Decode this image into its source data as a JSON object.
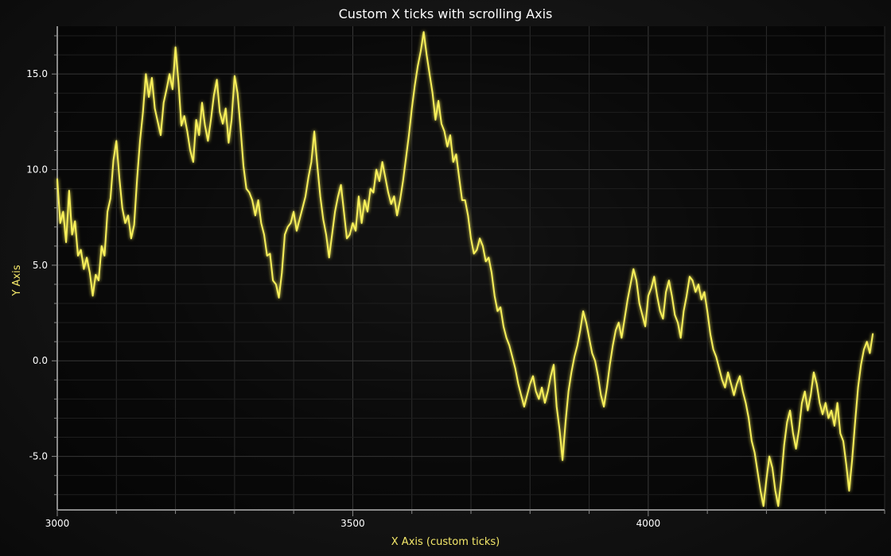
{
  "chart_data": {
    "type": "line",
    "title": "Custom X ticks with scrolling Axis",
    "xlabel": "X Axis (custom ticks)",
    "ylabel": "Y Axis",
    "xlim": [
      3000,
      4400
    ],
    "ylim": [
      -7.8,
      17.5
    ],
    "x_ticks": [
      3000,
      3500,
      4000
    ],
    "x_tick_labels": [
      "3000",
      "3500",
      "4000"
    ],
    "y_ticks": [
      -5,
      0,
      5,
      10,
      15
    ],
    "y_tick_labels": [
      "-5.0",
      "0.0",
      "5.0",
      "10.0",
      "15.0"
    ],
    "grid": true,
    "legend": "none",
    "colors": {
      "series": "#f8f05a",
      "grid": "#2c2c2c",
      "axis": "#8a8a8a"
    },
    "series": [
      {
        "points": [
          [
            3000,
            9.5
          ],
          [
            3005,
            7.2
          ],
          [
            3010,
            7.8
          ],
          [
            3015,
            6.2
          ],
          [
            3020,
            8.9
          ],
          [
            3025,
            6.6
          ],
          [
            3030,
            7.3
          ],
          [
            3035,
            5.5
          ],
          [
            3040,
            5.8
          ],
          [
            3045,
            4.8
          ],
          [
            3050,
            5.4
          ],
          [
            3055,
            4.6
          ],
          [
            3060,
            3.4
          ],
          [
            3065,
            4.5
          ],
          [
            3070,
            4.2
          ],
          [
            3075,
            6.0
          ],
          [
            3080,
            5.5
          ],
          [
            3085,
            7.8
          ],
          [
            3090,
            8.5
          ],
          [
            3095,
            10.5
          ],
          [
            3100,
            11.5
          ],
          [
            3105,
            9.6
          ],
          [
            3110,
            8.0
          ],
          [
            3115,
            7.2
          ],
          [
            3120,
            7.6
          ],
          [
            3125,
            6.4
          ],
          [
            3130,
            7.1
          ],
          [
            3135,
            9.5
          ],
          [
            3140,
            11.5
          ],
          [
            3145,
            13.0
          ],
          [
            3150,
            15.0
          ],
          [
            3155,
            13.8
          ],
          [
            3160,
            14.8
          ],
          [
            3165,
            13.2
          ],
          [
            3170,
            12.5
          ],
          [
            3175,
            11.8
          ],
          [
            3180,
            13.5
          ],
          [
            3185,
            14.2
          ],
          [
            3190,
            15.0
          ],
          [
            3195,
            14.2
          ],
          [
            3200,
            16.4
          ],
          [
            3205,
            14.6
          ],
          [
            3210,
            12.3
          ],
          [
            3215,
            12.8
          ],
          [
            3220,
            12.0
          ],
          [
            3225,
            11.0
          ],
          [
            3230,
            10.4
          ],
          [
            3235,
            12.6
          ],
          [
            3240,
            11.8
          ],
          [
            3245,
            13.5
          ],
          [
            3250,
            12.3
          ],
          [
            3255,
            11.5
          ],
          [
            3260,
            12.6
          ],
          [
            3265,
            13.9
          ],
          [
            3270,
            14.7
          ],
          [
            3275,
            13.0
          ],
          [
            3280,
            12.4
          ],
          [
            3285,
            13.2
          ],
          [
            3290,
            11.4
          ],
          [
            3295,
            12.6
          ],
          [
            3300,
            14.9
          ],
          [
            3305,
            14.0
          ],
          [
            3310,
            12.2
          ],
          [
            3315,
            10.2
          ],
          [
            3320,
            9.0
          ],
          [
            3325,
            8.8
          ],
          [
            3330,
            8.4
          ],
          [
            3335,
            7.6
          ],
          [
            3340,
            8.4
          ],
          [
            3345,
            7.2
          ],
          [
            3350,
            6.6
          ],
          [
            3355,
            5.5
          ],
          [
            3360,
            5.6
          ],
          [
            3365,
            4.2
          ],
          [
            3370,
            4.0
          ],
          [
            3375,
            3.3
          ],
          [
            3380,
            4.6
          ],
          [
            3385,
            6.6
          ],
          [
            3390,
            7.0
          ],
          [
            3395,
            7.2
          ],
          [
            3400,
            7.8
          ],
          [
            3405,
            6.8
          ],
          [
            3410,
            7.4
          ],
          [
            3415,
            8.0
          ],
          [
            3420,
            8.6
          ],
          [
            3425,
            9.6
          ],
          [
            3430,
            10.4
          ],
          [
            3435,
            12.0
          ],
          [
            3440,
            10.2
          ],
          [
            3445,
            8.6
          ],
          [
            3450,
            7.4
          ],
          [
            3455,
            6.6
          ],
          [
            3460,
            5.4
          ],
          [
            3465,
            6.6
          ],
          [
            3470,
            7.8
          ],
          [
            3475,
            8.6
          ],
          [
            3480,
            9.2
          ],
          [
            3485,
            7.8
          ],
          [
            3490,
            6.4
          ],
          [
            3495,
            6.6
          ],
          [
            3500,
            7.2
          ],
          [
            3505,
            6.8
          ],
          [
            3510,
            8.6
          ],
          [
            3515,
            7.2
          ],
          [
            3520,
            8.4
          ],
          [
            3525,
            7.8
          ],
          [
            3530,
            9.0
          ],
          [
            3535,
            8.8
          ],
          [
            3540,
            10.0
          ],
          [
            3545,
            9.4
          ],
          [
            3550,
            10.4
          ],
          [
            3555,
            9.6
          ],
          [
            3560,
            8.8
          ],
          [
            3565,
            8.2
          ],
          [
            3570,
            8.6
          ],
          [
            3575,
            7.6
          ],
          [
            3580,
            8.4
          ],
          [
            3585,
            9.4
          ],
          [
            3590,
            10.6
          ],
          [
            3595,
            11.8
          ],
          [
            3600,
            13.2
          ],
          [
            3605,
            14.4
          ],
          [
            3610,
            15.4
          ],
          [
            3615,
            16.2
          ],
          [
            3620,
            17.2
          ],
          [
            3625,
            16.0
          ],
          [
            3630,
            15.0
          ],
          [
            3635,
            14.0
          ],
          [
            3640,
            12.6
          ],
          [
            3645,
            13.6
          ],
          [
            3650,
            12.4
          ],
          [
            3655,
            12.0
          ],
          [
            3660,
            11.2
          ],
          [
            3665,
            11.8
          ],
          [
            3670,
            10.4
          ],
          [
            3675,
            10.8
          ],
          [
            3680,
            9.6
          ],
          [
            3685,
            8.4
          ],
          [
            3690,
            8.4
          ],
          [
            3695,
            7.6
          ],
          [
            3700,
            6.4
          ],
          [
            3705,
            5.6
          ],
          [
            3710,
            5.8
          ],
          [
            3715,
            6.4
          ],
          [
            3720,
            6.0
          ],
          [
            3725,
            5.2
          ],
          [
            3730,
            5.4
          ],
          [
            3735,
            4.6
          ],
          [
            3740,
            3.4
          ],
          [
            3745,
            2.6
          ],
          [
            3750,
            2.8
          ],
          [
            3755,
            1.8
          ],
          [
            3760,
            1.2
          ],
          [
            3765,
            0.8
          ],
          [
            3770,
            0.2
          ],
          [
            3775,
            -0.4
          ],
          [
            3780,
            -1.2
          ],
          [
            3785,
            -1.8
          ],
          [
            3790,
            -2.4
          ],
          [
            3795,
            -1.8
          ],
          [
            3800,
            -1.2
          ],
          [
            3805,
            -0.8
          ],
          [
            3810,
            -1.6
          ],
          [
            3815,
            -2.0
          ],
          [
            3820,
            -1.4
          ],
          [
            3825,
            -2.2
          ],
          [
            3830,
            -1.6
          ],
          [
            3835,
            -0.8
          ],
          [
            3840,
            -0.2
          ],
          [
            3845,
            -2.4
          ],
          [
            3850,
            -3.6
          ],
          [
            3855,
            -5.2
          ],
          [
            3860,
            -3.2
          ],
          [
            3865,
            -1.6
          ],
          [
            3870,
            -0.6
          ],
          [
            3875,
            0.2
          ],
          [
            3880,
            0.8
          ],
          [
            3885,
            1.6
          ],
          [
            3890,
            2.6
          ],
          [
            3895,
            2.0
          ],
          [
            3900,
            1.2
          ],
          [
            3905,
            0.4
          ],
          [
            3910,
            0.0
          ],
          [
            3915,
            -0.8
          ],
          [
            3920,
            -1.8
          ],
          [
            3925,
            -2.4
          ],
          [
            3930,
            -1.4
          ],
          [
            3935,
            -0.2
          ],
          [
            3940,
            0.8
          ],
          [
            3945,
            1.6
          ],
          [
            3950,
            2.0
          ],
          [
            3955,
            1.2
          ],
          [
            3960,
            2.2
          ],
          [
            3965,
            3.2
          ],
          [
            3970,
            4.0
          ],
          [
            3975,
            4.8
          ],
          [
            3980,
            4.2
          ],
          [
            3985,
            3.0
          ],
          [
            3990,
            2.4
          ],
          [
            3995,
            1.8
          ],
          [
            4000,
            3.4
          ],
          [
            4005,
            3.8
          ],
          [
            4010,
            4.4
          ],
          [
            4015,
            3.4
          ],
          [
            4020,
            2.6
          ],
          [
            4025,
            2.2
          ],
          [
            4030,
            3.6
          ],
          [
            4035,
            4.2
          ],
          [
            4040,
            3.4
          ],
          [
            4045,
            2.4
          ],
          [
            4050,
            2.0
          ],
          [
            4055,
            1.2
          ],
          [
            4060,
            2.6
          ],
          [
            4065,
            3.4
          ],
          [
            4070,
            4.4
          ],
          [
            4075,
            4.2
          ],
          [
            4080,
            3.6
          ],
          [
            4085,
            4.0
          ],
          [
            4090,
            3.2
          ],
          [
            4095,
            3.6
          ],
          [
            4100,
            2.6
          ],
          [
            4105,
            1.4
          ],
          [
            4110,
            0.6
          ],
          [
            4115,
            0.2
          ],
          [
            4120,
            -0.4
          ],
          [
            4125,
            -1.0
          ],
          [
            4130,
            -1.4
          ],
          [
            4135,
            -0.6
          ],
          [
            4140,
            -1.2
          ],
          [
            4145,
            -1.8
          ],
          [
            4150,
            -1.2
          ],
          [
            4155,
            -0.8
          ],
          [
            4160,
            -1.6
          ],
          [
            4165,
            -2.2
          ],
          [
            4170,
            -3.0
          ],
          [
            4175,
            -4.2
          ],
          [
            4180,
            -4.8
          ],
          [
            4185,
            -5.8
          ],
          [
            4190,
            -6.8
          ],
          [
            4195,
            -7.6
          ],
          [
            4200,
            -6.2
          ],
          [
            4205,
            -5.0
          ],
          [
            4210,
            -5.6
          ],
          [
            4215,
            -6.8
          ],
          [
            4220,
            -7.6
          ],
          [
            4225,
            -6.2
          ],
          [
            4230,
            -4.4
          ],
          [
            4235,
            -3.2
          ],
          [
            4240,
            -2.6
          ],
          [
            4245,
            -3.8
          ],
          [
            4250,
            -4.6
          ],
          [
            4255,
            -3.6
          ],
          [
            4260,
            -2.2
          ],
          [
            4265,
            -1.6
          ],
          [
            4270,
            -2.6
          ],
          [
            4275,
            -1.8
          ],
          [
            4280,
            -0.6
          ],
          [
            4285,
            -1.2
          ],
          [
            4290,
            -2.2
          ],
          [
            4295,
            -2.8
          ],
          [
            4300,
            -2.2
          ],
          [
            4305,
            -3.0
          ],
          [
            4310,
            -2.6
          ],
          [
            4315,
            -3.4
          ],
          [
            4320,
            -2.2
          ],
          [
            4325,
            -3.8
          ],
          [
            4330,
            -4.2
          ],
          [
            4335,
            -5.4
          ],
          [
            4340,
            -6.8
          ],
          [
            4345,
            -5.2
          ],
          [
            4350,
            -3.2
          ],
          [
            4355,
            -1.4
          ],
          [
            4360,
            -0.2
          ],
          [
            4365,
            0.6
          ],
          [
            4370,
            1.0
          ],
          [
            4375,
            0.4
          ],
          [
            4380,
            1.4
          ]
        ]
      }
    ]
  }
}
